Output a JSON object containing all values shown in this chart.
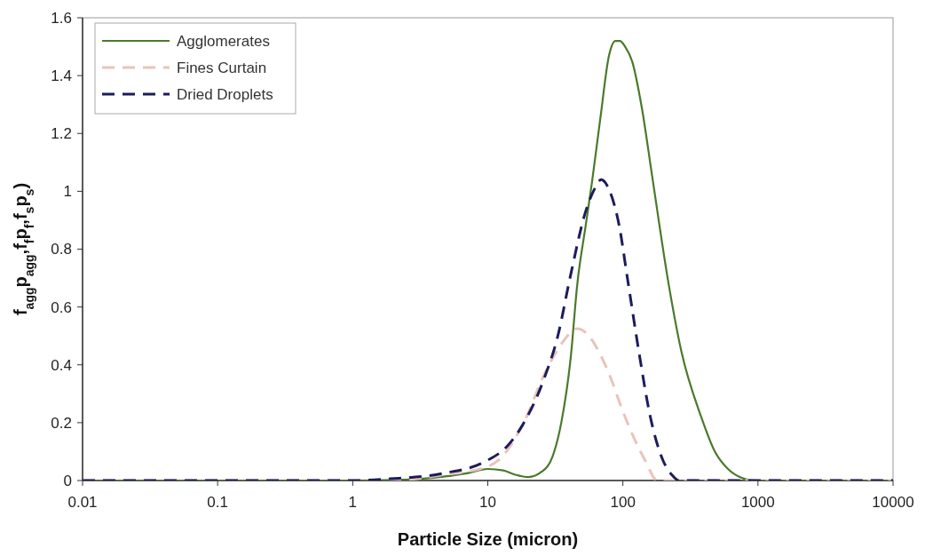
{
  "chart_data": {
    "type": "line",
    "xlabel": "Particle Size (micron)",
    "ylabel": "f$_{agg}$p$_{agg}$,f$_{f}$p$_{f}$,f$_{s}$p$_{s}$)",
    "log": "x",
    "xlim": [
      0.01,
      10000
    ],
    "xticks": [
      0.01,
      0.1,
      1,
      10,
      100,
      1000,
      10000
    ],
    "ylim": [
      0,
      1.6
    ],
    "yticks": [
      0,
      0.2,
      0.4,
      0.6,
      0.8,
      1,
      1.2,
      1.4,
      1.6
    ],
    "grid": false,
    "legend": "top left",
    "series": [
      {
        "name": "Agglomerates",
        "color": "#4a7a2a",
        "line_style": "solid",
        "x": [
          0.01,
          1,
          2,
          3,
          5,
          7,
          10,
          13,
          16,
          20,
          25,
          30,
          35,
          41,
          46,
          53,
          59,
          68,
          79,
          88,
          95,
          104,
          117,
          138,
          165,
          218,
          270,
          380,
          480,
          600,
          750,
          940,
          1500,
          10000
        ],
        "values": [
          0,
          0,
          0.002,
          0.005,
          0.015,
          0.025,
          0.04,
          0.035,
          0.02,
          0.012,
          0.03,
          0.08,
          0.2,
          0.42,
          0.68,
          0.88,
          1.03,
          1.25,
          1.47,
          1.52,
          1.52,
          1.5,
          1.45,
          1.29,
          1.05,
          0.68,
          0.45,
          0.22,
          0.1,
          0.04,
          0.01,
          0,
          0,
          0
        ]
      },
      {
        "name": "Fines Curtain",
        "color": "#e8c4bc",
        "line_style": "dashed",
        "x": [
          0.01,
          1,
          2,
          4.7,
          9.5,
          12,
          18,
          27,
          36,
          46,
          56,
          69,
          82,
          98,
          120,
          146,
          180,
          10000
        ],
        "values": [
          0,
          0,
          0,
          0.02,
          0.045,
          0.07,
          0.19,
          0.38,
          0.48,
          0.525,
          0.5,
          0.43,
          0.35,
          0.25,
          0.15,
          0.07,
          0,
          0
        ]
      },
      {
        "name": "Dried Droplets",
        "color": "#1c1c5c",
        "line_style": "dashed",
        "x": [
          0.01,
          1,
          1.9,
          4.7,
          9.5,
          14,
          18,
          26,
          33,
          41,
          53,
          62,
          69,
          80,
          94,
          108,
          133,
          158,
          198,
          230,
          260,
          10000
        ],
        "values": [
          0,
          0,
          0.006,
          0.025,
          0.065,
          0.12,
          0.19,
          0.35,
          0.5,
          0.71,
          0.93,
          1.01,
          1.04,
          1.0,
          0.88,
          0.7,
          0.43,
          0.23,
          0.07,
          0.02,
          0,
          0
        ]
      }
    ]
  }
}
